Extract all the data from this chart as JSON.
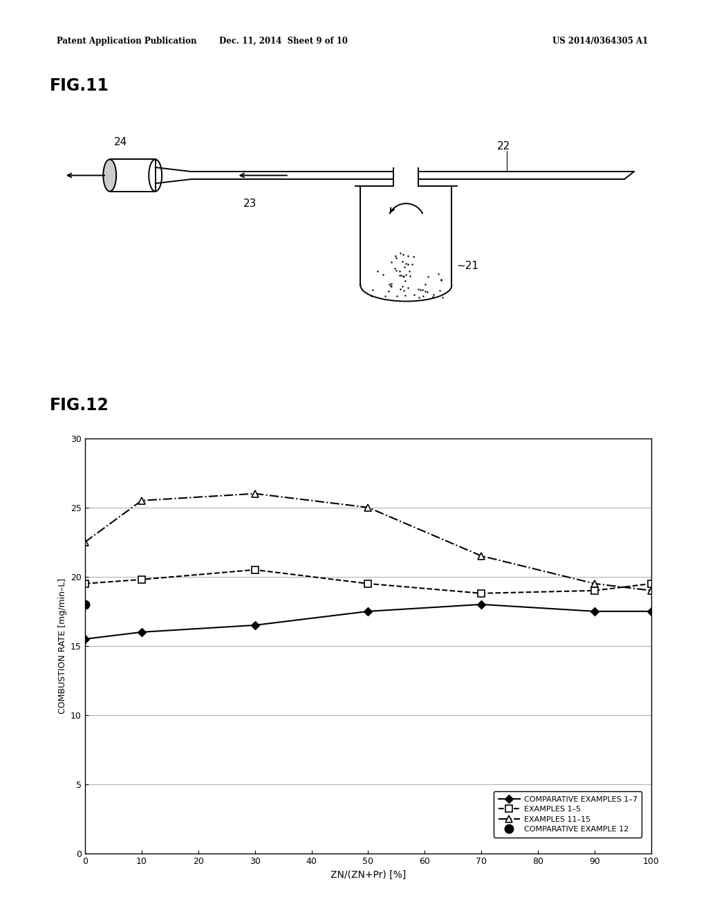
{
  "header_left": "Patent Application Publication",
  "header_center": "Dec. 11, 2014  Sheet 9 of 10",
  "header_right": "US 2014/0364305 A1",
  "fig11_label": "FIG.11",
  "fig12_label": "FIG.12",
  "label_21": "21",
  "label_22": "22",
  "label_23": "23",
  "label_24": "24",
  "series1_label": "COMPARATIVE EXAMPLES 1–7",
  "series2_label": "EXAMPLES 1–5",
  "series3_label": "EXAMPLES 11–15",
  "series4_label": "COMPARATIVE EXAMPLE 12",
  "x_values": [
    0,
    10,
    30,
    50,
    70,
    90,
    100
  ],
  "series1_y": [
    15.5,
    16.0,
    16.5,
    17.5,
    18.0,
    17.5,
    17.5
  ],
  "series2_y": [
    19.5,
    19.8,
    20.5,
    19.5,
    18.8,
    19.0,
    19.5
  ],
  "series3_y": [
    22.5,
    25.5,
    26.0,
    25.0,
    21.5,
    19.5,
    19.0
  ],
  "series4_x": [
    0
  ],
  "series4_y": [
    18.0
  ],
  "xlabel": "ZN/(ZN+Pr) [%]",
  "ylabel": "COMBUSTION RATE [mg/min–L]",
  "xlim": [
    0,
    100
  ],
  "ylim": [
    0,
    30
  ],
  "yticks": [
    0,
    5,
    10,
    15,
    20,
    25,
    30
  ],
  "xticks": [
    0,
    10,
    20,
    30,
    40,
    50,
    60,
    70,
    80,
    90,
    100
  ],
  "background_color": "#ffffff",
  "line_color": "#000000"
}
